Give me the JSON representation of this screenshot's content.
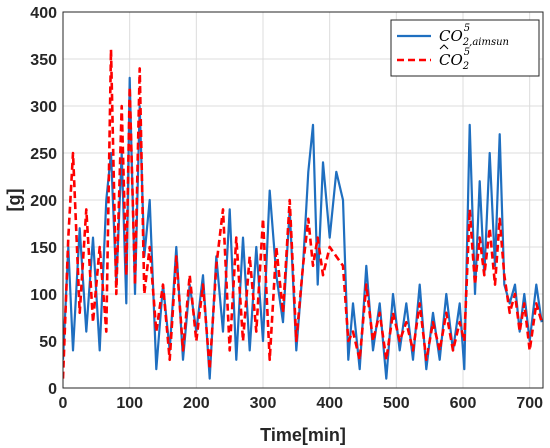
{
  "chart_data": {
    "type": "line",
    "xlabel": "Time[min]",
    "ylabel": "[g]",
    "xlim": [
      0,
      720
    ],
    "ylim": [
      0,
      400
    ],
    "xticks": [
      0,
      100,
      200,
      300,
      400,
      500,
      600,
      700
    ],
    "yticks": [
      0,
      50,
      100,
      150,
      200,
      250,
      300,
      350,
      400
    ],
    "xtick_labels": [
      "0",
      "100",
      "200",
      "300",
      "400",
      "500",
      "600",
      "700"
    ],
    "ytick_labels": [
      "0",
      "50",
      "100",
      "150",
      "200",
      "250",
      "300",
      "350",
      "400"
    ],
    "grid": true,
    "legend_position": "top-right",
    "series": [
      {
        "legend": {
          "base": "CO",
          "sub": "2,aimsun",
          "sup": "5"
        },
        "style": "solid",
        "color": "#1f6fc0",
        "x": [
          0,
          8,
          15,
          25,
          35,
          45,
          55,
          65,
          72,
          80,
          88,
          95,
          100,
          108,
          115,
          122,
          130,
          140,
          150,
          160,
          170,
          180,
          190,
          200,
          210,
          220,
          230,
          240,
          250,
          260,
          270,
          280,
          290,
          300,
          310,
          320,
          330,
          340,
          350,
          360,
          368,
          375,
          382,
          390,
          400,
          410,
          420,
          428,
          435,
          445,
          455,
          465,
          475,
          485,
          495,
          505,
          515,
          525,
          535,
          545,
          555,
          565,
          575,
          585,
          595,
          602,
          610,
          618,
          625,
          632,
          640,
          648,
          655,
          662,
          670,
          678,
          685,
          692,
          700,
          710,
          718
        ],
        "y": [
          30,
          150,
          40,
          170,
          60,
          160,
          40,
          200,
          250,
          110,
          250,
          90,
          330,
          100,
          300,
          140,
          200,
          20,
          110,
          40,
          150,
          30,
          110,
          60,
          120,
          10,
          140,
          60,
          190,
          30,
          160,
          40,
          150,
          50,
          210,
          120,
          70,
          190,
          40,
          130,
          230,
          280,
          110,
          240,
          160,
          230,
          200,
          30,
          90,
          20,
          130,
          40,
          90,
          10,
          100,
          40,
          90,
          30,
          110,
          20,
          80,
          30,
          100,
          40,
          90,
          20,
          280,
          100,
          220,
          120,
          250,
          130,
          270,
          110,
          90,
          110,
          60,
          100,
          50,
          110,
          70
        ]
      },
      {
        "legend": {
          "base": "CO",
          "sub": "2",
          "sup": "5"
        },
        "style": "dashed",
        "color": "#ff0000",
        "x": [
          0,
          8,
          15,
          25,
          35,
          45,
          55,
          65,
          72,
          80,
          88,
          95,
          100,
          108,
          115,
          122,
          130,
          140,
          150,
          160,
          170,
          180,
          190,
          200,
          210,
          220,
          230,
          240,
          250,
          260,
          270,
          280,
          290,
          300,
          310,
          320,
          330,
          340,
          350,
          360,
          368,
          375,
          382,
          390,
          400,
          410,
          420,
          428,
          435,
          445,
          455,
          465,
          475,
          485,
          495,
          505,
          515,
          525,
          535,
          545,
          555,
          565,
          575,
          585,
          595,
          602,
          610,
          618,
          625,
          632,
          640,
          648,
          655,
          662,
          670,
          678,
          685,
          692,
          700,
          710,
          718
        ],
        "y": [
          10,
          160,
          250,
          80,
          190,
          70,
          150,
          60,
          360,
          100,
          300,
          120,
          320,
          110,
          340,
          100,
          150,
          60,
          110,
          30,
          140,
          40,
          120,
          50,
          110,
          20,
          130,
          190,
          40,
          160,
          50,
          140,
          60,
          180,
          30,
          150,
          80,
          200,
          50,
          130,
          180,
          130,
          160,
          120,
          150,
          140,
          130,
          50,
          60,
          30,
          110,
          50,
          80,
          30,
          80,
          50,
          70,
          40,
          90,
          30,
          70,
          40,
          80,
          40,
          70,
          50,
          190,
          110,
          160,
          120,
          170,
          110,
          180,
          120,
          80,
          100,
          60,
          90,
          40,
          90,
          70
        ]
      }
    ]
  }
}
